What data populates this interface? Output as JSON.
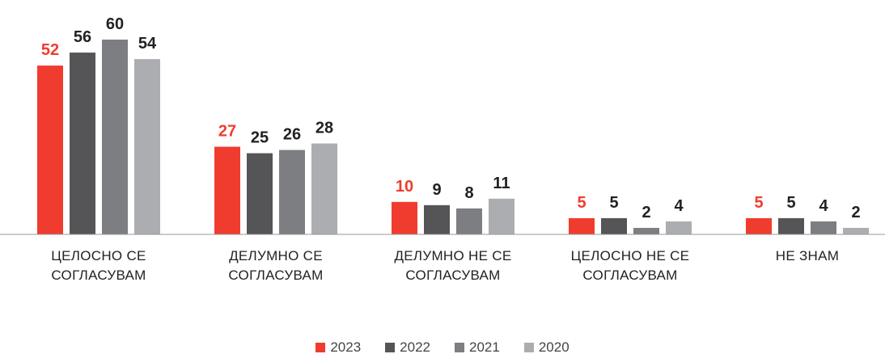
{
  "chart_data": {
    "type": "bar",
    "categories": [
      "ЦЕЛОСНО СЕ СОГЛАСУВАМ",
      "ДЕЛУМНО СЕ СОГЛАСУВАМ",
      "ДЕЛУМНО НЕ СЕ СОГЛАСУВАМ",
      "ЦЕЛОСНО НЕ СЕ СОГЛАСУВАМ",
      "НЕ ЗНАМ"
    ],
    "series": [
      {
        "name": "2023",
        "color": "#f03c2e",
        "values": [
          52,
          27,
          10,
          5,
          5
        ]
      },
      {
        "name": "2022",
        "color": "#555558",
        "values": [
          56,
          25,
          9,
          5,
          5
        ]
      },
      {
        "name": "2021",
        "color": "#7d7e82",
        "values": [
          60,
          26,
          8,
          2,
          4
        ]
      },
      {
        "name": "2020",
        "color": "#acadb0",
        "values": [
          54,
          28,
          11,
          4,
          2
        ]
      }
    ],
    "legend": "bottom"
  }
}
